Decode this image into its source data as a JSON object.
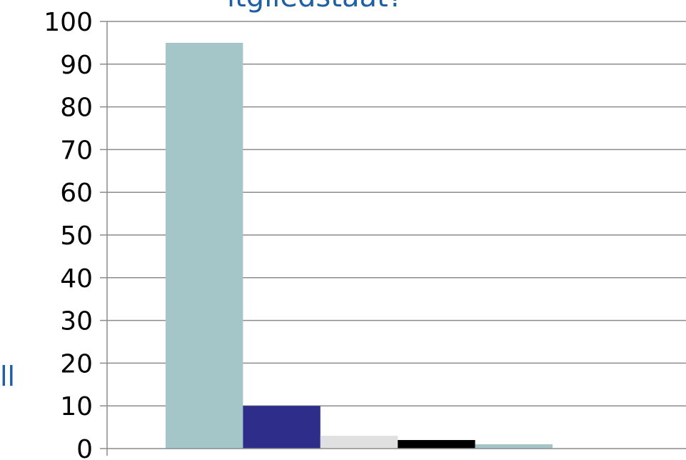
{
  "title_fragment": "itgliedstaat?",
  "edge_fragment": "ll",
  "chart_data": {
    "type": "bar",
    "categories": [
      ""
    ],
    "series": [
      {
        "values": [
          95
        ],
        "color": "#a5c6c8"
      },
      {
        "values": [
          10
        ],
        "color": "#2e2e8a"
      },
      {
        "values": [
          3
        ],
        "color": "#e0e0e0"
      },
      {
        "values": [
          2
        ],
        "color": "#000000"
      },
      {
        "values": [
          1
        ],
        "color": "#a5c6c8"
      }
    ],
    "ylim": [
      0,
      100
    ],
    "yticks": [
      "0",
      "10",
      "20",
      "30",
      "40",
      "50",
      "60",
      "70",
      "80",
      "90",
      "100"
    ],
    "grid": true,
    "title": "",
    "xlabel": "",
    "ylabel": ""
  },
  "colors": {
    "title": "#1f5fa6",
    "grid": "#8c8c8c",
    "axis": "#8c8c8c"
  }
}
